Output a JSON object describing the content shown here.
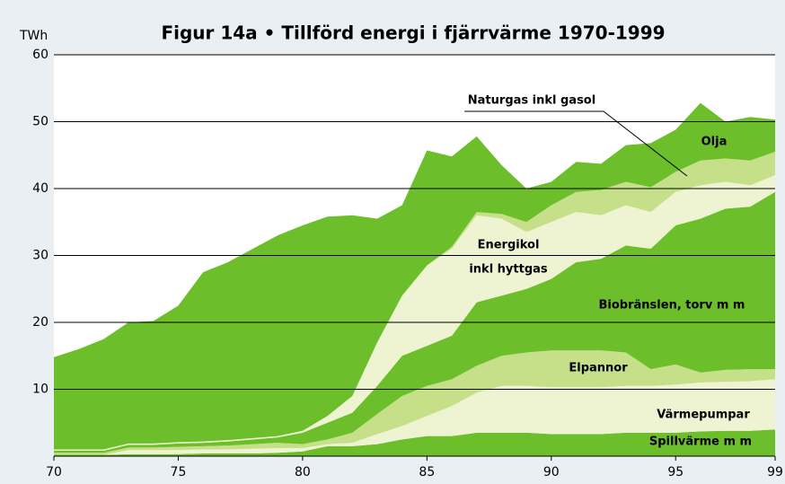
{
  "chart_data": {
    "type": "stacked_area",
    "title": "Figur 14a • Tillförd energi i fjärrvärme 1970-1999",
    "y_axis_label": "TWh",
    "x": [
      70,
      71,
      72,
      73,
      74,
      75,
      76,
      77,
      78,
      79,
      80,
      81,
      82,
      83,
      84,
      85,
      86,
      87,
      88,
      89,
      90,
      91,
      92,
      93,
      94,
      95,
      96,
      97,
      98,
      99
    ],
    "xlim": [
      70,
      99
    ],
    "xticks": [
      70,
      75,
      80,
      85,
      90,
      95,
      99
    ],
    "ylim": [
      0,
      60
    ],
    "yticks": [
      10,
      20,
      30,
      40,
      50,
      60
    ],
    "grid": true,
    "series": [
      {
        "name": "Spillvärme m m",
        "color": "#6cbe2a",
        "values": [
          0.2,
          0.2,
          0.2,
          0.3,
          0.3,
          0.3,
          0.4,
          0.4,
          0.4,
          0.5,
          0.7,
          1.5,
          1.5,
          1.8,
          2.5,
          3,
          3,
          3.5,
          3.5,
          3.5,
          3.3,
          3.3,
          3.3,
          3.5,
          3.5,
          3.5,
          3.7,
          3.8,
          3.8,
          4
        ]
      },
      {
        "name": "Värmepumpar",
        "color": "#eef4d2",
        "values": [
          0,
          0,
          0,
          0.6,
          0.6,
          0.6,
          0.6,
          0.6,
          0.7,
          0.7,
          0.5,
          0.3,
          0.5,
          1.5,
          2,
          3,
          4.5,
          6,
          7,
          7,
          7,
          7,
          7,
          7,
          7,
          7.2,
          7.3,
          7.3,
          7.4,
          7.5
        ]
      },
      {
        "name": "Elpannor",
        "color": "#c6e08a",
        "values": [
          0.3,
          0.3,
          0.3,
          0.4,
          0.4,
          0.5,
          0.5,
          0.6,
          0.7,
          0.8,
          0.6,
          0.7,
          1.5,
          3,
          4.5,
          4.5,
          4,
          4,
          4.5,
          5,
          5.5,
          5.5,
          5.5,
          5,
          2.5,
          3,
          1.5,
          1.8,
          1.8,
          1.5
        ]
      },
      {
        "name": "Biobränslen, torv m m",
        "color": "#6cbe2a",
        "values": [
          0.3,
          0.3,
          0.3,
          0.4,
          0.4,
          0.5,
          0.5,
          0.6,
          0.7,
          0.8,
          1.7,
          2.5,
          3,
          4.2,
          6,
          6,
          6.5,
          9.5,
          9,
          9.5,
          10.7,
          13.2,
          13.7,
          16,
          18,
          20.8,
          23,
          24.1,
          24.3,
          26.5
        ]
      },
      {
        "name": "Energikol inkl hyttgas",
        "color": "#eef4d2",
        "values": [
          0.2,
          0.2,
          0.2,
          0.2,
          0.2,
          0.2,
          0.2,
          0.2,
          0.2,
          0.2,
          0.3,
          1,
          2.5,
          6.5,
          9,
          12,
          13,
          13,
          11.5,
          8.5,
          8.5,
          7.5,
          6.5,
          6,
          5.5,
          5,
          5,
          4,
          3.2,
          2.5
        ]
      },
      {
        "name": "Naturgas inkl gasol",
        "color": "#c6e08a",
        "values": [
          0,
          0,
          0,
          0,
          0,
          0,
          0,
          0,
          0,
          0,
          0,
          0,
          0,
          0,
          0,
          0,
          0.3,
          0.5,
          0.7,
          1.5,
          2.5,
          3,
          3.8,
          3.5,
          3.7,
          3,
          3.7,
          3.5,
          3.7,
          3.5
        ]
      },
      {
        "name": "Olja",
        "color": "#6cbe2a",
        "values": [
          13.8,
          15,
          16.5,
          18.1,
          18.3,
          20.4,
          25.3,
          26.6,
          28.3,
          30,
          30.7,
          29.8,
          27,
          18.5,
          13.5,
          17.2,
          13.5,
          11.3,
          7.3,
          5,
          3.5,
          4.5,
          3.9,
          5.5,
          6.6,
          6.3,
          8.6,
          5.5,
          6.5,
          4.8
        ]
      }
    ],
    "annotations": [
      "Naturgas inkl gasol",
      "Olja",
      "Energikol",
      "inkl hyttgas",
      "Biobränslen, torv m m",
      "Elpannor",
      "Värmepumpar",
      "Spillvärme m m"
    ]
  }
}
